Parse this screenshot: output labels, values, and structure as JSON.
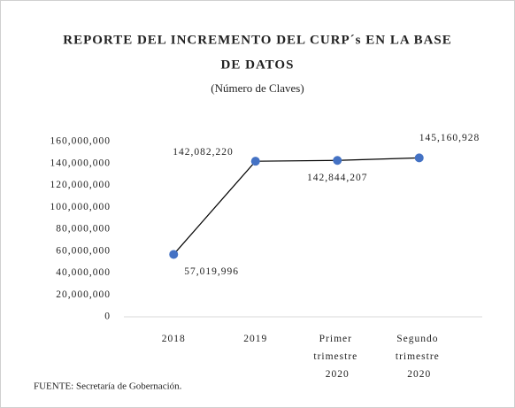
{
  "chart_data": {
    "type": "line",
    "title": "REPORTE DEL INCREMENTO DEL CURP´s EN LA BASE",
    "title_line2": "DE DATOS",
    "subtitle": "(Número de Claves)",
    "categories": [
      "2018",
      "2019",
      "Primer trimestre 2020",
      "Segundo trimestre 2020"
    ],
    "values": [
      57019996,
      142082220,
      142844207,
      145160928
    ],
    "value_labels": [
      "57,019,996",
      "142,082,220",
      "142,844,207",
      "145,160,928"
    ],
    "color": "#000000",
    "marker_color": "#4472c4",
    "ylim": [
      0,
      160000000
    ],
    "yticks": [
      {
        "value": 0,
        "label": "0"
      },
      {
        "value": 20000000,
        "label": "20,000,000"
      },
      {
        "value": 40000000,
        "label": "40,000,000"
      },
      {
        "value": 60000000,
        "label": "60,000,000"
      },
      {
        "value": 80000000,
        "label": "80,000,000"
      },
      {
        "value": 100000000,
        "label": "100,000,000"
      },
      {
        "value": 120000000,
        "label": "120,000,000"
      },
      {
        "value": 140000000,
        "label": "140,000,000"
      },
      {
        "value": 160000000,
        "label": "160,000,000"
      }
    ],
    "source": "FUENTE: Secretaría de Gobernación."
  }
}
